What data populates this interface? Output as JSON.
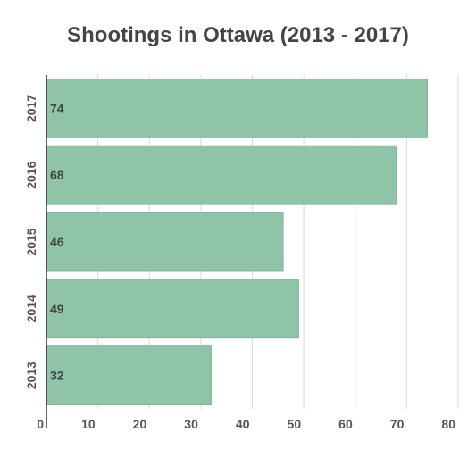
{
  "chart_data": {
    "type": "bar",
    "orientation": "horizontal",
    "title": "Shootings in Ottawa (2013 - 2017)",
    "categories": [
      "2017",
      "2016",
      "2015",
      "2014",
      "2013"
    ],
    "values": [
      74,
      68,
      46,
      49,
      32
    ],
    "xlim": [
      0,
      80
    ],
    "xticks": [
      0,
      10,
      20,
      30,
      40,
      50,
      60,
      70,
      80
    ],
    "grid": true,
    "legend": "none",
    "colors": {
      "bar": "#8fc4a8",
      "bar_edge": "#7db597",
      "grid": "#d9d9d9",
      "axis": "#333333"
    }
  }
}
